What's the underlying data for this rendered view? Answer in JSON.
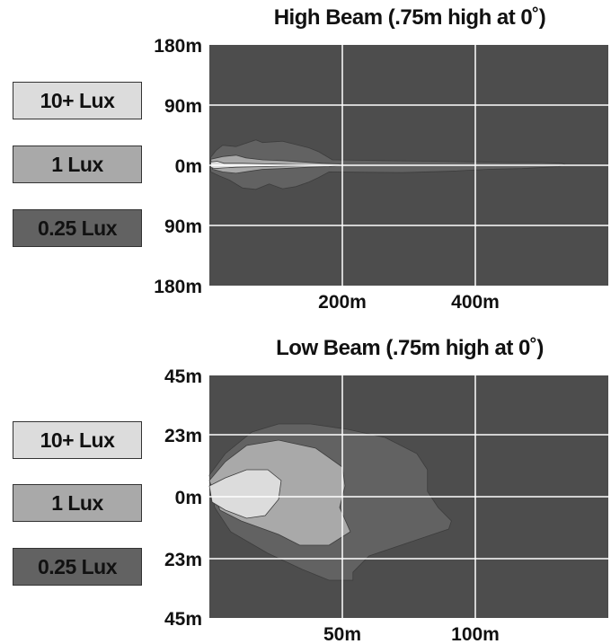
{
  "chart_data": [
    {
      "type": "heatmap",
      "title": "High Beam (.75m high at 0˚)",
      "ylim": [
        -180,
        180
      ],
      "xlim": [
        0,
        600
      ],
      "y_ticks": [
        180,
        90,
        0,
        -90,
        -180
      ],
      "y_tick_labels": [
        "180m",
        "90m",
        "0m",
        "90m",
        "180m"
      ],
      "x_ticks": [
        200,
        400
      ],
      "x_tick_labels": [
        "200m",
        "400m"
      ],
      "grid": true,
      "background_color": "#4d4d4d",
      "legend": [
        {
          "label": "10+ Lux",
          "color": "#dcdcdc"
        },
        {
          "label": "1 Lux",
          "color": "#a9a9a9"
        },
        {
          "label": "0.25 Lux",
          "color": "#626262"
        }
      ],
      "regions": [
        {
          "level": "0.25 Lux",
          "color": "#626262",
          "points": [
            [
              2,
              12
            ],
            [
              10,
              22
            ],
            [
              20,
              30
            ],
            [
              40,
              28
            ],
            [
              70,
              38
            ],
            [
              80,
              34
            ],
            [
              110,
              36
            ],
            [
              130,
              31
            ],
            [
              150,
              26
            ],
            [
              165,
              20
            ],
            [
              185,
              8
            ],
            [
              260,
              7
            ],
            [
              330,
              6
            ],
            [
              400,
              5
            ],
            [
              450,
              4
            ],
            [
              500,
              4
            ],
            [
              530,
              3
            ],
            [
              535,
              1
            ],
            [
              525,
              -2
            ],
            [
              470,
              -5
            ],
            [
              420,
              -6
            ],
            [
              360,
              -9
            ],
            [
              290,
              -11
            ],
            [
              180,
              -10
            ],
            [
              165,
              -18
            ],
            [
              150,
              -25
            ],
            [
              130,
              -32
            ],
            [
              110,
              -35
            ],
            [
              90,
              -28
            ],
            [
              70,
              -36
            ],
            [
              50,
              -34
            ],
            [
              30,
              -22
            ],
            [
              15,
              -16
            ],
            [
              2,
              -10
            ]
          ]
        },
        {
          "level": "1 Lux",
          "color": "#a9a9a9",
          "points": [
            [
              2,
              9
            ],
            [
              20,
              13
            ],
            [
              40,
              15
            ],
            [
              55,
              11
            ],
            [
              80,
              8
            ],
            [
              110,
              7
            ],
            [
              140,
              5
            ],
            [
              170,
              3
            ],
            [
              195,
              2
            ],
            [
              200,
              0
            ],
            [
              180,
              -2
            ],
            [
              150,
              -3
            ],
            [
              110,
              -5
            ],
            [
              80,
              -6
            ],
            [
              60,
              -9
            ],
            [
              40,
              -12
            ],
            [
              20,
              -10
            ],
            [
              5,
              -6
            ]
          ]
        },
        {
          "level": "10+ Lux",
          "color": "#dcdcdc",
          "points": [
            [
              2,
              5
            ],
            [
              12,
              6
            ],
            [
              22,
              3
            ],
            [
              50,
              3
            ],
            [
              90,
              2
            ],
            [
              125,
              1
            ],
            [
              160,
              0
            ],
            [
              125,
              -1
            ],
            [
              80,
              -2
            ],
            [
              40,
              -3
            ],
            [
              20,
              -4
            ],
            [
              8,
              -5
            ],
            [
              2,
              -3
            ]
          ]
        }
      ]
    },
    {
      "type": "heatmap",
      "title": "Low Beam (.75m high at 0˚)",
      "ylim": [
        -45,
        45
      ],
      "xlim": [
        0,
        150
      ],
      "y_ticks": [
        45,
        23,
        0,
        -23,
        -45
      ],
      "y_tick_labels": [
        "45m",
        "23m",
        "0m",
        "23m",
        "45m"
      ],
      "x_ticks": [
        50,
        100
      ],
      "x_tick_labels": [
        "50m",
        "100m"
      ],
      "grid": true,
      "background_color": "#4d4d4d",
      "legend": [
        {
          "label": "10+ Lux",
          "color": "#dcdcdc"
        },
        {
          "label": "1 Lux",
          "color": "#a9a9a9"
        },
        {
          "label": "0.25 Lux",
          "color": "#626262"
        }
      ],
      "regions": [
        {
          "level": "0.25 Lux",
          "color": "#626262",
          "points": [
            [
              0,
              8
            ],
            [
              6,
              16
            ],
            [
              16,
              24
            ],
            [
              26,
              27
            ],
            [
              38,
              27
            ],
            [
              52,
              25
            ],
            [
              66,
              22
            ],
            [
              78,
              16
            ],
            [
              82,
              10
            ],
            [
              82,
              2
            ],
            [
              86,
              -4
            ],
            [
              91,
              -9
            ],
            [
              90,
              -12
            ],
            [
              78,
              -16
            ],
            [
              60,
              -22
            ],
            [
              54,
              -28
            ],
            [
              54,
              -31
            ],
            [
              45,
              -31
            ],
            [
              35,
              -27
            ],
            [
              22,
              -21
            ],
            [
              8,
              -13
            ],
            [
              2,
              -4
            ]
          ]
        },
        {
          "level": "1 Lux",
          "color": "#a9a9a9",
          "points": [
            [
              0,
              6
            ],
            [
              6,
              13
            ],
            [
              14,
              19
            ],
            [
              26,
              21
            ],
            [
              40,
              18
            ],
            [
              50,
              11
            ],
            [
              51,
              4
            ],
            [
              49,
              -4
            ],
            [
              53,
              -13
            ],
            [
              45,
              -18
            ],
            [
              34,
              -18
            ],
            [
              26,
              -14
            ],
            [
              12,
              -9
            ],
            [
              4,
              -5
            ]
          ]
        },
        {
          "level": "10+ Lux",
          "color": "#dcdcdc",
          "points": [
            [
              0,
              4
            ],
            [
              6,
              7
            ],
            [
              14,
              10
            ],
            [
              22,
              10
            ],
            [
              27,
              6
            ],
            [
              26,
              -1
            ],
            [
              21,
              -7
            ],
            [
              14,
              -8
            ],
            [
              6,
              -5
            ],
            [
              1,
              -2
            ]
          ]
        }
      ]
    }
  ]
}
